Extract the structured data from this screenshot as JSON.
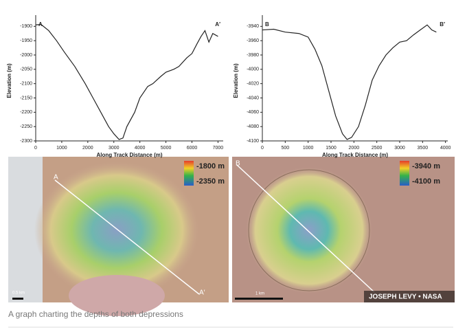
{
  "chart_data": [
    {
      "type": "line",
      "xlabel": "Along Track Distance (m)",
      "ylabel": "Elevation (m)",
      "annotations": {
        "start": "A",
        "end": "A′"
      },
      "x": [
        0,
        200,
        500,
        800,
        1100,
        1500,
        1900,
        2200,
        2500,
        2800,
        3000,
        3200,
        3350,
        3500,
        3800,
        4000,
        4300,
        4500,
        4800,
        5000,
        5300,
        5500,
        5800,
        6000,
        6200,
        6350,
        6500,
        6650,
        6800,
        7000
      ],
      "series": [
        {
          "name": "A",
          "color": "#222222",
          "values": [
            -1895,
            -1893,
            -1915,
            -1950,
            -1990,
            -2040,
            -2100,
            -2150,
            -2200,
            -2250,
            -2275,
            -2295,
            -2290,
            -2250,
            -2200,
            -2150,
            -2110,
            -2100,
            -2075,
            -2060,
            -2050,
            -2040,
            -2010,
            -1995,
            -1960,
            -1935,
            -1915,
            -1955,
            -1925,
            -1935
          ]
        }
      ],
      "xlim": [
        0,
        7200
      ],
      "xticks": [
        0,
        1000,
        2000,
        3000,
        4000,
        5000,
        6000,
        7000
      ],
      "ylim": [
        -2300,
        -1880
      ],
      "yticks": [
        -2300,
        -2250,
        -2200,
        -2150,
        -2100,
        -2050,
        -2000,
        -1950,
        -1900
      ]
    },
    {
      "type": "line",
      "xlabel": "Along Track Distance (m)",
      "ylabel": "Elevation (m)",
      "annotations": {
        "start": "B",
        "end": "B′"
      },
      "x": [
        0,
        250,
        500,
        800,
        1000,
        1150,
        1300,
        1450,
        1600,
        1750,
        1850,
        1950,
        2100,
        2250,
        2400,
        2550,
        2700,
        2850,
        3000,
        3150,
        3300,
        3450,
        3600,
        3700,
        3800
      ],
      "series": [
        {
          "name": "B",
          "color": "#222222",
          "values": [
            -3945,
            -3944,
            -3948,
            -3950,
            -3955,
            -3972,
            -3995,
            -4030,
            -4065,
            -4090,
            -4098,
            -4095,
            -4080,
            -4050,
            -4015,
            -3995,
            -3980,
            -3970,
            -3962,
            -3960,
            -3952,
            -3945,
            -3938,
            -3945,
            -3948
          ]
        }
      ],
      "xlim": [
        0,
        4050
      ],
      "xticks": [
        0,
        500,
        1000,
        1500,
        2000,
        2500,
        3000,
        3500,
        4000
      ],
      "ylim": [
        -4100,
        -3932
      ],
      "yticks": [
        -4100,
        -4080,
        -4060,
        -4040,
        -4020,
        -4000,
        -3980,
        -3960,
        -3940
      ]
    }
  ],
  "maps": [
    {
      "start": "A",
      "end": "A′",
      "legend_max": "-1800 m",
      "legend_min": "-2350 m",
      "scale": "0.5 km"
    },
    {
      "start": "B",
      "legend_max": "-3940 m",
      "legend_min": "-4100 m",
      "scale": "1 km"
    }
  ],
  "credit": "JOSEPH LEVY • NASA",
  "caption": "A graph charting the depths of both depressions"
}
